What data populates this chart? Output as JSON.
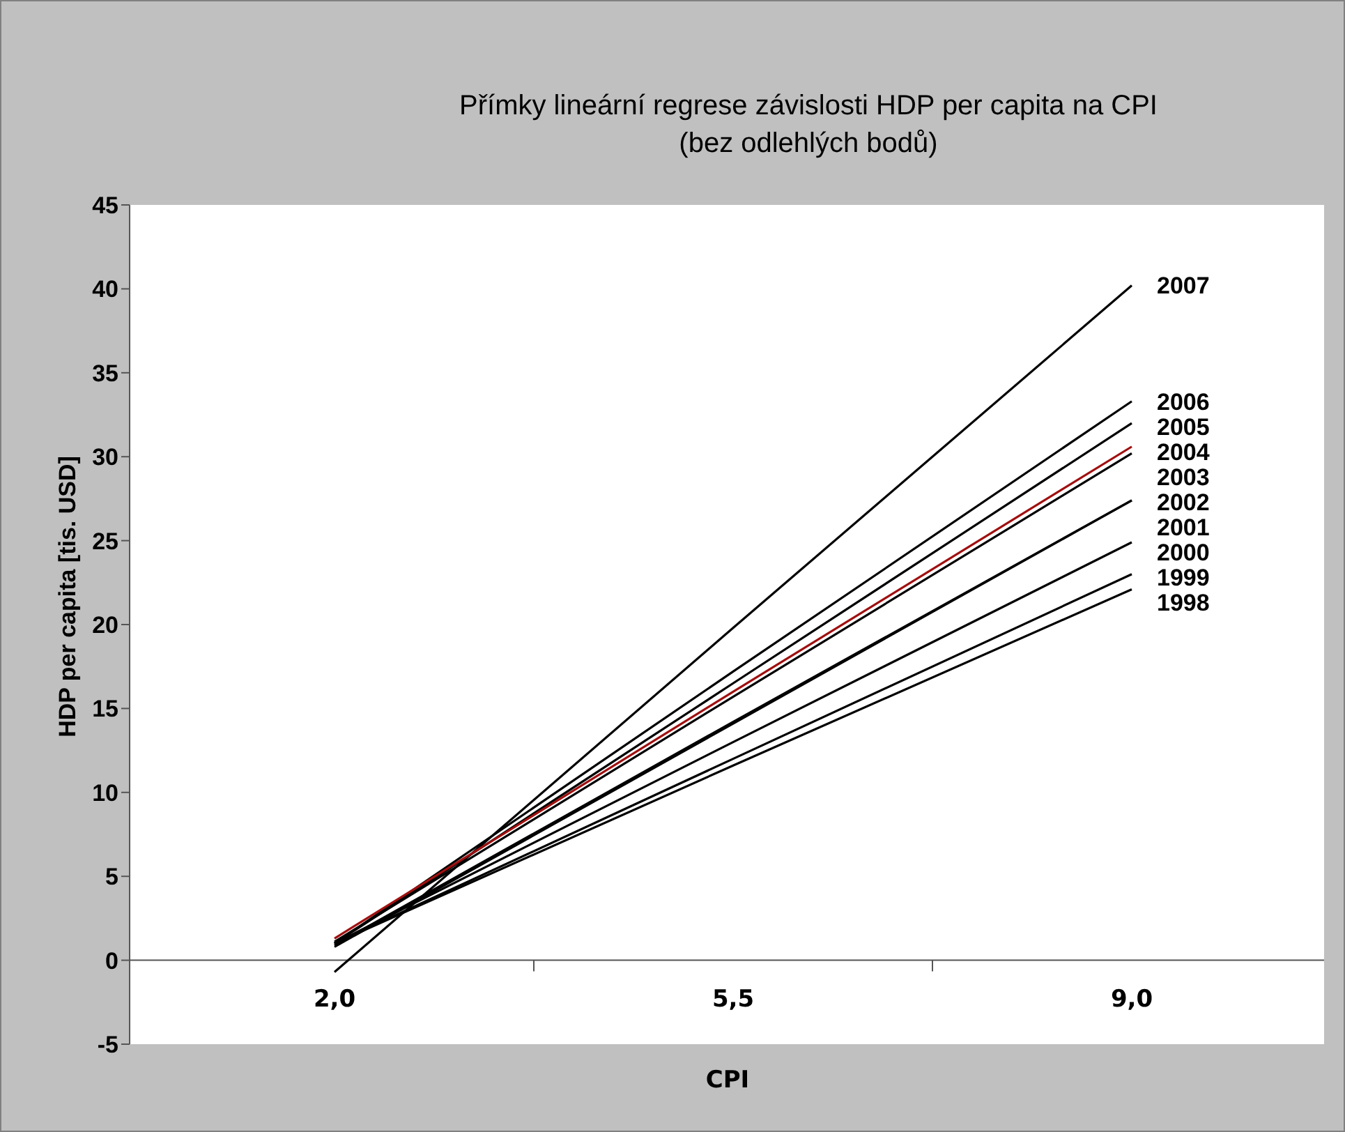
{
  "chart_data": {
    "type": "line",
    "title": "Přímky lineární regrese závislosti HDP per capita na CPI",
    "subtitle": "(bez odlehlých bodů)",
    "xlabel": "CPI",
    "ylabel": "HDP per capita [tis. USD]",
    "categories": [
      "2,0",
      "5,5",
      "9,0"
    ],
    "ylim": [
      -5,
      45
    ],
    "yticks": [
      -5,
      0,
      5,
      10,
      15,
      20,
      25,
      30,
      35,
      40,
      45
    ],
    "grid": false,
    "marker": "none",
    "line_style": "solid",
    "series": [
      {
        "name": "2007",
        "color": "#000000",
        "values": [
          -0.7,
          19.8,
          40.2
        ]
      },
      {
        "name": "2006",
        "color": "#000000",
        "values": [
          1.0,
          17.2,
          33.3
        ]
      },
      {
        "name": "2005",
        "color": "#000000",
        "values": [
          1.0,
          16.5,
          32.0
        ]
      },
      {
        "name": "2004",
        "color": "#a01010",
        "values": [
          1.3,
          16.0,
          30.6
        ]
      },
      {
        "name": "2003",
        "color": "#000000",
        "values": [
          1.1,
          15.7,
          30.2
        ]
      },
      {
        "name": "2002",
        "color": "#000000",
        "values": [
          0.9,
          14.2,
          27.4
        ]
      },
      {
        "name": "2001",
        "color": "#000000",
        "values": [
          0.8,
          14.1,
          27.4
        ]
      },
      {
        "name": "2000",
        "color": "#000000",
        "values": [
          1.0,
          13.0,
          24.9
        ]
      },
      {
        "name": "1999",
        "color": "#000000",
        "values": [
          1.0,
          12.0,
          23.0
        ]
      },
      {
        "name": "1998",
        "color": "#000000",
        "values": [
          1.0,
          11.6,
          22.1
        ]
      }
    ]
  }
}
